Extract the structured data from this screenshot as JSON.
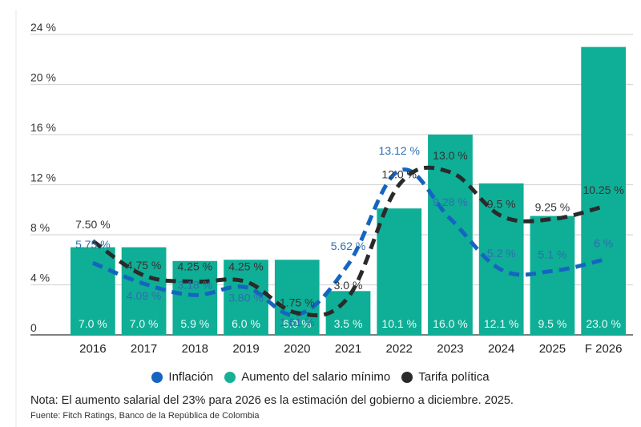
{
  "chart_data": {
    "type": "bar",
    "title": "",
    "xlabel": "",
    "ylabel": "",
    "ylim": [
      0,
      24
    ],
    "y_ticks": [
      0,
      4,
      8,
      12,
      16,
      20,
      24
    ],
    "y_tick_labels": [
      "0",
      "4 %",
      "8 %",
      "12 %",
      "16 %",
      "20 %",
      "24 %"
    ],
    "grid": true,
    "legend_position": "bottom-center",
    "categories": [
      "2016",
      "2017",
      "2018",
      "2019",
      "2020",
      "2021",
      "2022",
      "2023",
      "2024",
      "2025",
      "F 2026"
    ],
    "series": [
      {
        "name": "Aumento del salario mínimo",
        "type": "bar",
        "color": "#0fae96",
        "values": [
          7.0,
          7.0,
          5.9,
          6.0,
          6.0,
          3.5,
          10.1,
          16.0,
          12.1,
          9.5,
          23.0
        ],
        "labels": [
          "7.0 %",
          "7.0 %",
          "5.9 %",
          "6.0 %",
          "6.0 %",
          "3.5 %",
          "10.1 %",
          "16.0 %",
          "12.1 %",
          "9.5 %",
          "23.0 %"
        ]
      },
      {
        "name": "Inflación",
        "type": "line",
        "style": "dashed",
        "color": "#1565c0",
        "values": [
          5.75,
          4.09,
          3.18,
          3.8,
          1.61,
          5.62,
          13.12,
          9.28,
          5.2,
          5.1,
          6
        ],
        "labels": [
          "5.75 %",
          "4.09 %",
          "3.18 %",
          "3.80 %",
          "1.61 %",
          "5.62 %",
          "13.12 %",
          "9.28 %",
          "5.2 %",
          "5.1 %",
          "6 %"
        ]
      },
      {
        "name": "Tarifa política",
        "type": "line",
        "style": "dashed",
        "color": "#2a2a2a",
        "values": [
          7.5,
          4.75,
          4.25,
          4.25,
          1.75,
          3.0,
          12.0,
          13.0,
          9.5,
          9.25,
          10.25
        ],
        "labels": [
          "7.50 %",
          "4.75 %",
          "4.25 %",
          "4.25 %",
          "1.75 %",
          "3.0 %",
          "12.0 %",
          "13.0 %",
          "9.5 %",
          "9.25 %",
          "10.25 %"
        ]
      }
    ]
  },
  "legend": {
    "items": [
      {
        "label": "Inflación",
        "color": "#1565c0"
      },
      {
        "label": "Aumento del salario mínimo",
        "color": "#0fae96"
      },
      {
        "label": "Tarifa política",
        "color": "#2a2a2a"
      }
    ]
  },
  "footer": {
    "note": "Nota: El aumento salarial del 23% para 2026 es la estimación del gobierno a diciembre. 2025.",
    "source": "Fuente: Fitch Ratings, Banco de la República de Colombia"
  }
}
